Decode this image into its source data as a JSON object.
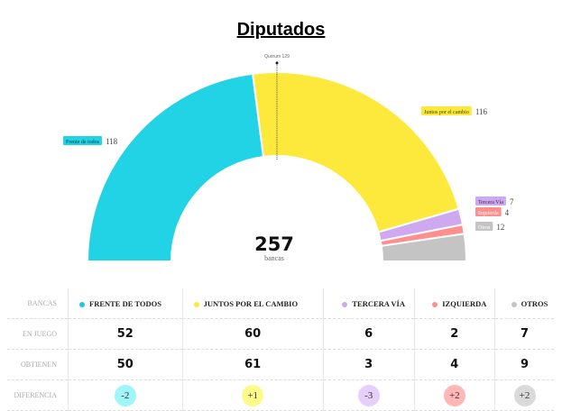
{
  "title": "Diputados",
  "chart_data": {
    "type": "pie",
    "subtype": "semicircle-parliament",
    "total": "257",
    "total_label": "bancas",
    "quorum_label": "Quorum 129",
    "quorum": 129,
    "series": [
      {
        "name": "Frente de todos",
        "value": 118,
        "color": "#22d3e6"
      },
      {
        "name": "Juntos por el cambio",
        "value": 116,
        "color": "#fde93c"
      },
      {
        "name": "Tercera Vía",
        "value": 7,
        "color": "#cfa9f0"
      },
      {
        "name": "Izquierda",
        "value": 4,
        "color": "#ff8f8f"
      },
      {
        "name": "Otros",
        "value": 12,
        "color": "#c4c4c4"
      }
    ]
  },
  "table": {
    "row_labels": [
      "BANCAS",
      "EN JUEGO",
      "OBTIENEN",
      "DIFERENCIA"
    ],
    "columns": [
      {
        "name": "FRENTE DE TODOS",
        "dot": "#22c6e0",
        "en_juego": "52",
        "obtienen": "50",
        "diferencia": "-2",
        "bubble": "#9ff5f8"
      },
      {
        "name": "JUNTOS POR EL CAMBIO",
        "dot": "#fde93c",
        "en_juego": "60",
        "obtienen": "61",
        "diferencia": "+1",
        "bubble": "#fdfb8a"
      },
      {
        "name": "TERCERA VÍA",
        "dot": "#cfa9f0",
        "en_juego": "6",
        "obtienen": "3",
        "diferencia": "-3",
        "bubble": "#e6cff9"
      },
      {
        "name": "IZQUIERDA",
        "dot": "#ff8f8f",
        "en_juego": "2",
        "obtienen": "4",
        "diferencia": "+2",
        "bubble": "#ffb7b7"
      },
      {
        "name": "OTROS",
        "dot": "#c4c4c4",
        "en_juego": "7",
        "obtienen": "9",
        "diferencia": "+2",
        "bubble": "#dadada"
      }
    ]
  }
}
